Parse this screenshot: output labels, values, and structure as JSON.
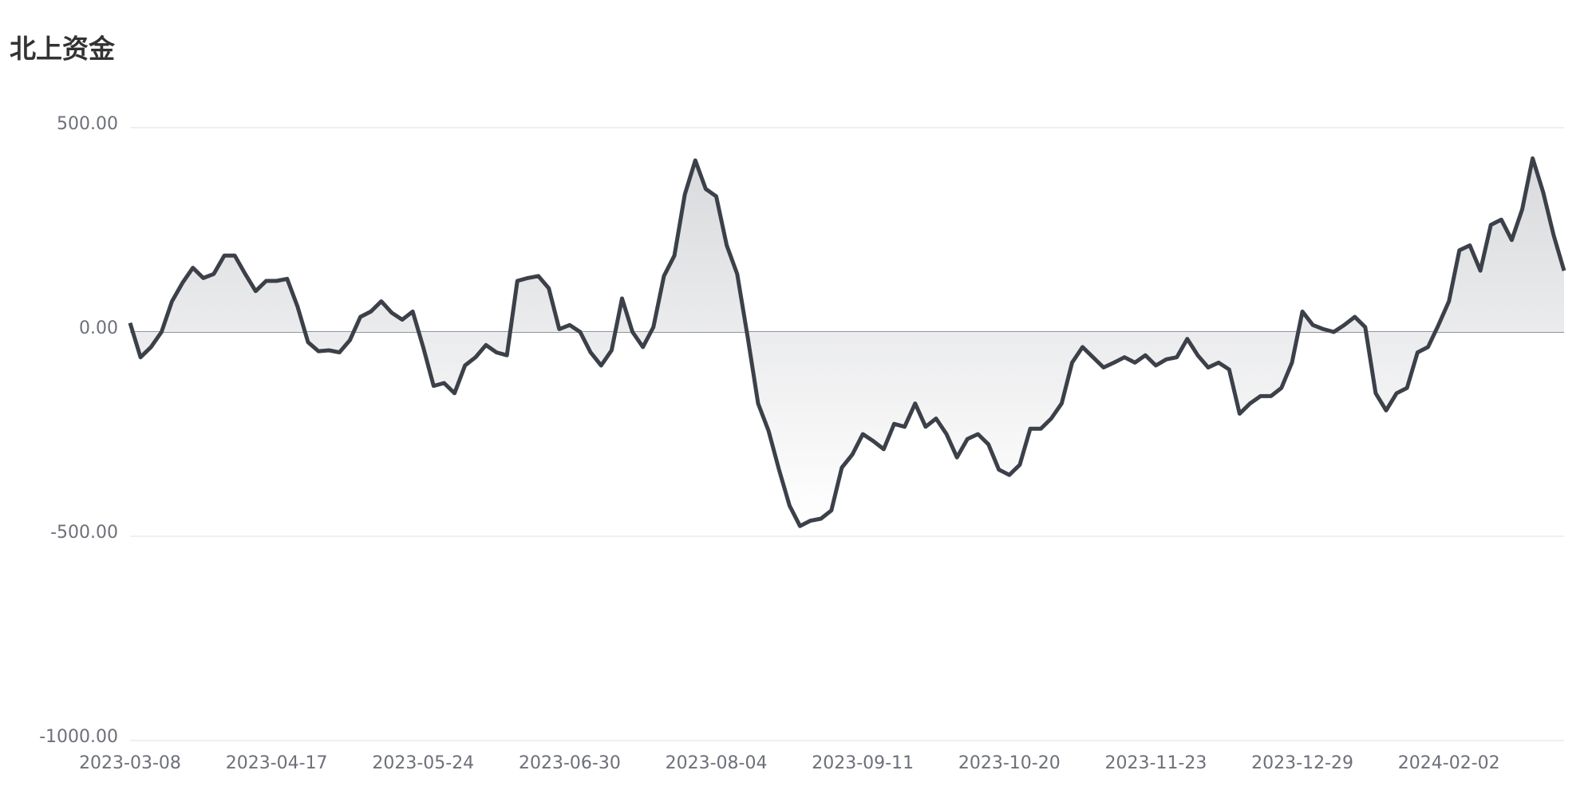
{
  "chart_data": {
    "type": "line",
    "title": "北上资金",
    "categories": [
      "2023-03-08",
      null,
      null,
      null,
      null,
      null,
      null,
      null,
      null,
      null,
      null,
      null,
      null,
      null,
      "2023-04-17",
      null,
      null,
      null,
      null,
      null,
      null,
      null,
      null,
      null,
      null,
      null,
      null,
      null,
      "2023-05-24",
      null,
      null,
      null,
      null,
      null,
      null,
      null,
      null,
      null,
      null,
      null,
      null,
      null,
      "2023-06-30",
      null,
      null,
      null,
      null,
      null,
      null,
      null,
      null,
      null,
      null,
      null,
      null,
      null,
      "2023-08-04",
      null,
      null,
      null,
      null,
      null,
      null,
      null,
      null,
      null,
      null,
      null,
      null,
      null,
      "2023-09-11",
      null,
      null,
      null,
      null,
      null,
      null,
      null,
      null,
      null,
      null,
      null,
      null,
      null,
      "2023-10-20",
      null,
      null,
      null,
      null,
      null,
      null,
      null,
      null,
      null,
      null,
      null,
      null,
      null,
      "2023-11-23",
      null,
      null,
      null,
      null,
      null,
      null,
      null,
      null,
      null,
      null,
      null,
      null,
      null,
      "2023-12-29",
      null,
      null,
      null,
      null,
      null,
      null,
      null,
      null,
      null,
      null,
      null,
      null,
      null,
      "2024-02-02",
      null,
      null,
      null,
      null,
      null,
      null,
      null,
      null,
      null,
      null,
      null
    ],
    "series": [
      {
        "color": "#3b4049",
        "values": [
          22,
          -62,
          -37,
          0,
          75,
          120,
          157,
          132,
          142,
          187,
          187,
          142,
          100,
          125,
          125,
          130,
          62,
          -25,
          -47,
          -45,
          -50,
          -20,
          37,
          50,
          75,
          47,
          30,
          50,
          -37,
          -132,
          -125,
          -150,
          -82,
          -62,
          -32,
          -50,
          -57,
          125,
          132,
          137,
          107,
          7,
          17,
          0,
          -50,
          -82,
          -45,
          82,
          0,
          -37,
          12,
          137,
          187,
          337,
          420,
          350,
          332,
          212,
          142,
          -12,
          -175,
          -242,
          -337,
          -425,
          -475,
          -462,
          -457,
          -437,
          -332,
          -300,
          -250,
          -267,
          -287,
          -225,
          -232,
          -175,
          -232,
          -212,
          -250,
          -307,
          -262,
          -250,
          -275,
          -337,
          -350,
          -325,
          -237,
          -237,
          -212,
          -175,
          -75,
          -37,
          -62,
          -87,
          -75,
          -62,
          -75,
          -57,
          -82,
          -67,
          -62,
          -17,
          -57,
          -87,
          -75,
          -92,
          -200,
          -175,
          -157,
          -157,
          -137,
          -75,
          50,
          17,
          7,
          0,
          17,
          37,
          12,
          -150,
          -192,
          -150,
          -137,
          -50,
          -37,
          17,
          75,
          200,
          212,
          150,
          262,
          275,
          225,
          300,
          425,
          342,
          237,
          150
        ]
      }
    ],
    "ylim": [
      -1000,
      500
    ],
    "yticks": [
      {
        "value": -1000,
        "label": "-1000.00"
      },
      {
        "value": -500,
        "label": "-500.00"
      },
      {
        "value": 0,
        "label": "0.00"
      },
      {
        "value": 500,
        "label": "500.00"
      }
    ],
    "grid": true
  }
}
